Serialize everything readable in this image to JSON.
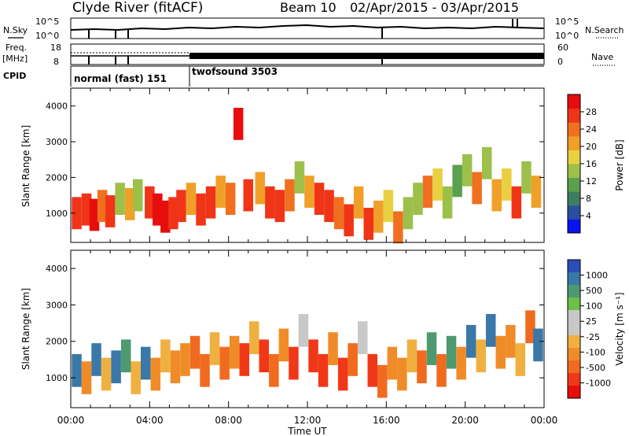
{
  "header": {
    "station": "Clyde River (fitACF)",
    "beam": "Beam 10",
    "date_range": "02/Apr/2015 - 03/Apr/2015"
  },
  "left_labels": {
    "nsky": "N.Sky",
    "freq": "Freq.",
    "freq_unit": "[MHz]",
    "cpid": "CPID"
  },
  "right_labels": {
    "nsearch": "N.Search",
    "nave": "Nave"
  },
  "cpid_segments": [
    {
      "label": "normal (fast) 151"
    },
    {
      "label": "twofsound 3503"
    }
  ],
  "power_colorbar": {
    "label": "Power [dB]",
    "ticks": [
      "4",
      "8",
      "12",
      "16",
      "20",
      "24",
      "28"
    ],
    "colors": [
      "#0a12f0",
      "#2a4fa0",
      "#3e7e60",
      "#5aa04e",
      "#9cc04a",
      "#e8d040",
      "#f0a028",
      "#f07020",
      "#f03418",
      "#e80d0d"
    ]
  },
  "velocity_colorbar": {
    "label": "Velocity [m s⁻¹]",
    "ticks": [
      "1000",
      "500",
      "100",
      "25",
      "-25",
      "-100",
      "-500",
      "-1000"
    ],
    "colors": [
      "#2a4fb8",
      "#3a78a8",
      "#4e9a70",
      "#6cc044",
      "#c8c8c8",
      "#c8c8c8",
      "#f0b040",
      "#f08c28",
      "#f06a20",
      "#f03818",
      "#e80d0d"
    ]
  },
  "chart_data": [
    {
      "type": "line",
      "name_left": "N.Sky",
      "name_right": "N.Search",
      "ylim_labels": [
        "10^0",
        "10^5"
      ],
      "right_ylim_labels": [
        "10^0",
        "10^5"
      ]
    },
    {
      "type": "line",
      "name_left": "Freq. [MHz]",
      "name_right": "Nave",
      "left_ticks": [
        "8",
        "18"
      ],
      "right_ticks": [
        "0",
        "60"
      ],
      "cpid_change_time": "06:00"
    },
    {
      "type": "heatmap",
      "quantity": "Power [dB]",
      "ylabel": "Slant Range [km]",
      "yticks": [
        1000,
        2000,
        3000,
        4000
      ],
      "ylim": [
        180,
        4500
      ],
      "xlim": [
        "00:00",
        "24:00"
      ],
      "cells": [
        [
          0.3,
          1000,
          26
        ],
        [
          0.8,
          1100,
          24
        ],
        [
          1.2,
          950,
          27
        ],
        [
          1.6,
          1200,
          22
        ],
        [
          2.0,
          1050,
          25
        ],
        [
          2.5,
          1400,
          14
        ],
        [
          3.0,
          1250,
          20
        ],
        [
          3.4,
          1500,
          12
        ],
        [
          4.0,
          1300,
          24
        ],
        [
          4.4,
          1100,
          27
        ],
        [
          4.8,
          900,
          28
        ],
        [
          5.2,
          1000,
          26
        ],
        [
          5.6,
          1200,
          24
        ],
        [
          6.1,
          1400,
          20
        ],
        [
          6.6,
          1100,
          26
        ],
        [
          7.1,
          1300,
          24
        ],
        [
          7.6,
          1600,
          18
        ],
        [
          8.1,
          1400,
          22
        ],
        [
          8.5,
          3500,
          28
        ],
        [
          9.0,
          1500,
          26
        ],
        [
          9.6,
          1700,
          20
        ],
        [
          10.1,
          1300,
          26
        ],
        [
          10.6,
          1200,
          24
        ],
        [
          11.1,
          1500,
          22
        ],
        [
          11.6,
          2000,
          12
        ],
        [
          12.1,
          1600,
          20
        ],
        [
          12.6,
          1400,
          26
        ],
        [
          13.1,
          1200,
          24
        ],
        [
          13.6,
          1000,
          22
        ],
        [
          14.1,
          800,
          26
        ],
        [
          14.6,
          1300,
          18
        ],
        [
          15.1,
          700,
          24
        ],
        [
          15.6,
          900,
          20
        ],
        [
          16.1,
          1200,
          16
        ],
        [
          16.6,
          600,
          22
        ],
        [
          17.1,
          1000,
          14
        ],
        [
          17.6,
          1400,
          12
        ],
        [
          18.1,
          1600,
          22
        ],
        [
          18.6,
          1800,
          16
        ],
        [
          19.1,
          1300,
          12
        ],
        [
          19.6,
          1900,
          10
        ],
        [
          20.1,
          2200,
          12
        ],
        [
          20.6,
          1700,
          22
        ],
        [
          21.1,
          2400,
          14
        ],
        [
          21.6,
          1500,
          20
        ],
        [
          22.1,
          1800,
          16
        ],
        [
          22.6,
          1300,
          24
        ],
        [
          23.1,
          2000,
          12
        ],
        [
          23.6,
          1600,
          18
        ]
      ]
    },
    {
      "type": "heatmap",
      "quantity": "Velocity [m s-1]",
      "ylabel": "Slant Range [km]",
      "xlabel": "Time UT",
      "xticks": [
        "00:00",
        "04:00",
        "08:00",
        "12:00",
        "16:00",
        "20:00",
        "00:00"
      ],
      "yticks": [
        1000,
        2000,
        3000,
        4000
      ],
      "ylim": [
        180,
        4500
      ],
      "xlim": [
        "00:00",
        "24:00"
      ],
      "cells": [
        [
          0.3,
          1200,
          400
        ],
        [
          0.8,
          1000,
          -300
        ],
        [
          1.3,
          1500,
          300
        ],
        [
          1.8,
          1100,
          -200
        ],
        [
          2.3,
          1300,
          600
        ],
        [
          2.8,
          1600,
          200
        ],
        [
          3.3,
          1000,
          -150
        ],
        [
          3.8,
          1400,
          500
        ],
        [
          4.3,
          1100,
          -300
        ],
        [
          4.8,
          1600,
          -150
        ],
        [
          5.3,
          1300,
          -400
        ],
        [
          5.8,
          1500,
          -250
        ],
        [
          6.3,
          1700,
          -500
        ],
        [
          6.8,
          1200,
          -600
        ],
        [
          7.3,
          1800,
          -150
        ],
        [
          7.8,
          1400,
          -600
        ],
        [
          8.3,
          1700,
          -400
        ],
        [
          8.8,
          1500,
          -700
        ],
        [
          9.3,
          2100,
          -150
        ],
        [
          9.8,
          1600,
          -800
        ],
        [
          10.3,
          1200,
          -600
        ],
        [
          10.8,
          1900,
          -300
        ],
        [
          11.3,
          1400,
          -900
        ],
        [
          11.8,
          2300,
          0
        ],
        [
          12.3,
          1600,
          -700
        ],
        [
          12.8,
          1200,
          -900
        ],
        [
          13.3,
          1800,
          -400
        ],
        [
          13.8,
          1100,
          -800
        ],
        [
          14.3,
          1500,
          -600
        ],
        [
          14.8,
          2100,
          0
        ],
        [
          15.3,
          1200,
          -700
        ],
        [
          15.8,
          900,
          -500
        ],
        [
          16.3,
          1400,
          -300
        ],
        [
          16.8,
          1100,
          -400
        ],
        [
          17.3,
          1600,
          -200
        ],
        [
          17.8,
          1300,
          -600
        ],
        [
          18.3,
          1800,
          200
        ],
        [
          18.8,
          1200,
          -500
        ],
        [
          19.3,
          1700,
          100
        ],
        [
          19.8,
          1400,
          -300
        ],
        [
          20.3,
          2000,
          400
        ],
        [
          20.8,
          1600,
          -200
        ],
        [
          21.3,
          2300,
          600
        ],
        [
          21.8,
          1700,
          -400
        ],
        [
          22.3,
          2000,
          -300
        ],
        [
          22.8,
          1500,
          -200
        ],
        [
          23.3,
          2400,
          -600
        ],
        [
          23.7,
          1900,
          500
        ]
      ]
    }
  ]
}
